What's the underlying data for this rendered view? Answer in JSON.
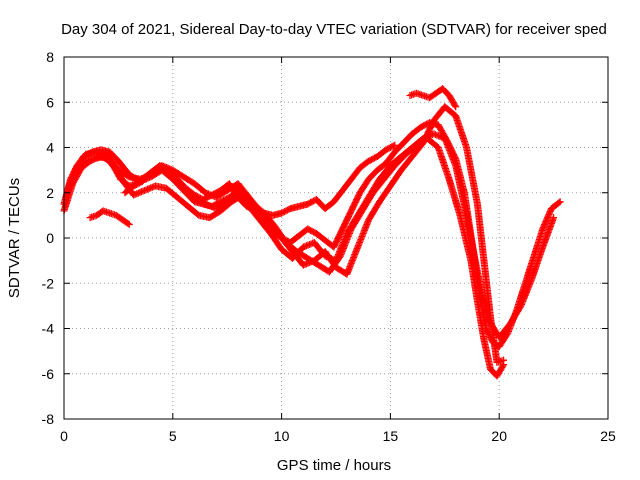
{
  "chart_data": {
    "type": "scatter",
    "title": "Day 304 of 2021, Sidereal Day-to-day VTEC variation (SDTVAR) for receiver sped",
    "xlabel": "GPS time / hours",
    "ylabel": "SDTVAR / TECUs",
    "xlim": [
      0,
      25
    ],
    "ylim": [
      -8,
      8
    ],
    "xticks": [
      0,
      5,
      10,
      15,
      20,
      25
    ],
    "yticks": [
      -8,
      -6,
      -4,
      -2,
      0,
      2,
      4,
      6,
      8
    ],
    "grid": true,
    "marker": "+",
    "color": "#ff0000",
    "series": [
      {
        "x": [
          0.0,
          0.3,
          0.6,
          1.0,
          1.4,
          1.8,
          2.2,
          2.6,
          3.0,
          3.3,
          3.6,
          4.0,
          4.4,
          4.8,
          5.2,
          5.6,
          6.0,
          6.4,
          6.8,
          7.2,
          7.6,
          8.0,
          8.4,
          8.8,
          9.2,
          9.6,
          10.0,
          10.4,
          10.8,
          11.2,
          11.6,
          12.0,
          12.4,
          12.8,
          13.2,
          13.6,
          14.0,
          14.4,
          14.8,
          15.2,
          15.6,
          16.0,
          16.4,
          16.8,
          17.2,
          17.6,
          18.0,
          18.4,
          18.8,
          19.1,
          19.4,
          19.7,
          20.0,
          20.4,
          20.8,
          21.2,
          21.6,
          22.0,
          22.4,
          22.8
        ],
        "y": [
          1.5,
          2.6,
          3.2,
          3.4,
          3.5,
          3.6,
          3.3,
          2.6,
          2.3,
          2.4,
          2.6,
          2.9,
          3.1,
          2.8,
          2.4,
          2.0,
          1.6,
          1.5,
          1.4,
          1.6,
          1.8,
          2.0,
          1.6,
          1.2,
          0.7,
          0.3,
          0.0,
          -0.2,
          0.1,
          0.4,
          0.2,
          -0.1,
          -0.4,
          0.4,
          1.2,
          2.0,
          2.6,
          3.0,
          3.3,
          3.8,
          4.2,
          4.6,
          4.9,
          5.1,
          5.0,
          4.3,
          3.5,
          2.0,
          -0.5,
          -2.6,
          -4.0,
          -4.6,
          -4.8,
          -4.2,
          -3.2,
          -2.0,
          -0.8,
          0.4,
          1.3,
          1.6
        ]
      },
      {
        "x": [
          0.1,
          0.5,
          0.9,
          1.3,
          1.7,
          2.1,
          2.5,
          3.0,
          3.5,
          4.0,
          4.5,
          5.0,
          5.5,
          6.0,
          6.5,
          7.0,
          7.5,
          8.0,
          8.5,
          9.0,
          9.5,
          10.0,
          10.5,
          11.0,
          11.5,
          12.0,
          12.5,
          13.0,
          13.5,
          14.0,
          14.5,
          15.0,
          15.5,
          16.0,
          16.5,
          17.0,
          17.5,
          18.0,
          18.5,
          19.0,
          19.5,
          20.0,
          20.5,
          21.0,
          21.5,
          22.0,
          22.5
        ],
        "y": [
          1.8,
          3.0,
          3.6,
          3.8,
          3.9,
          3.8,
          3.4,
          2.8,
          2.5,
          2.7,
          3.0,
          2.6,
          2.2,
          1.8,
          1.5,
          1.3,
          1.6,
          2.2,
          1.4,
          0.8,
          0.2,
          -0.5,
          -0.9,
          -0.4,
          -0.2,
          -0.8,
          -1.0,
          0.2,
          1.0,
          1.8,
          2.6,
          3.2,
          3.6,
          4.0,
          4.4,
          4.6,
          4.4,
          3.2,
          1.0,
          -1.5,
          -3.6,
          -4.4,
          -3.8,
          -3.0,
          -1.8,
          -0.4,
          0.9
        ]
      },
      {
        "x": [
          0.2,
          0.6,
          1.0,
          1.5,
          2.0,
          2.5,
          3.0,
          3.5,
          4.0,
          4.5,
          5.0,
          5.5,
          6.0,
          6.5,
          7.0,
          7.5,
          8.0,
          8.5,
          9.0,
          9.5,
          10.0,
          10.5,
          11.0,
          11.5,
          12.0,
          12.5,
          13.0,
          13.5,
          14.0,
          14.5,
          15.0,
          15.5,
          16.0,
          16.5,
          17.0,
          17.5,
          18.0,
          18.5,
          19.0,
          19.3,
          19.6,
          19.9,
          20.2
        ],
        "y": [
          2.2,
          3.2,
          3.7,
          3.8,
          3.6,
          3.0,
          2.7,
          2.6,
          2.8,
          3.2,
          3.0,
          2.7,
          2.4,
          2.0,
          1.8,
          2.1,
          2.4,
          1.8,
          1.2,
          0.7,
          0.0,
          -0.6,
          -1.2,
          -1.0,
          -0.6,
          -1.3,
          -1.6,
          -0.4,
          0.8,
          1.6,
          2.3,
          3.0,
          3.6,
          4.2,
          5.2,
          5.8,
          5.4,
          4.0,
          1.5,
          -1.0,
          -3.5,
          -5.5,
          -5.4
        ]
      },
      {
        "x": [
          0.0,
          0.4,
          0.8,
          1.2,
          1.6,
          2.0,
          2.4,
          2.8,
          3.2,
          3.7,
          4.2,
          4.7,
          5.2,
          5.7,
          6.2,
          6.7,
          7.2,
          7.7,
          8.2,
          8.7,
          9.2,
          9.7,
          10.2,
          10.7,
          11.2,
          11.7,
          12.2,
          12.7,
          13.2,
          13.7,
          14.2,
          14.7,
          15.2,
          15.7,
          16.2,
          16.7,
          17.2,
          17.7,
          18.2,
          18.7,
          19.0,
          19.3,
          19.6,
          19.9,
          20.2
        ],
        "y": [
          1.2,
          2.4,
          3.1,
          3.4,
          3.6,
          3.5,
          3.0,
          2.4,
          1.9,
          2.1,
          2.3,
          2.2,
          1.8,
          1.4,
          1.0,
          0.9,
          1.2,
          1.6,
          1.9,
          1.5,
          1.1,
          0.5,
          -0.2,
          -0.6,
          -0.9,
          -1.2,
          -1.5,
          -0.8,
          0.4,
          1.2,
          2.0,
          2.6,
          3.2,
          3.7,
          4.1,
          4.4,
          4.0,
          2.6,
          1.0,
          -1.0,
          -2.8,
          -4.5,
          -5.8,
          -6.1,
          -5.6
        ]
      },
      {
        "x": [
          1.2,
          1.5,
          1.8,
          2.1,
          2.4,
          2.7,
          3.0
        ],
        "y": [
          0.9,
          1.0,
          1.2,
          1.1,
          1.0,
          0.8,
          0.6
        ]
      },
      {
        "x": [
          15.9,
          16.2,
          16.5,
          16.8,
          17.1,
          17.4,
          17.7,
          18.0
        ],
        "y": [
          6.3,
          6.4,
          6.3,
          6.2,
          6.4,
          6.6,
          6.3,
          5.8
        ]
      },
      {
        "x": [
          2.8,
          3.2,
          3.6,
          4.0,
          4.4,
          4.8,
          5.2,
          5.6,
          6.0,
          6.4,
          6.8,
          7.2,
          7.6,
          8.0,
          8.4,
          8.8,
          9.2,
          9.6,
          10.0,
          10.4,
          10.8,
          11.2,
          11.6,
          12.0,
          12.4,
          12.8,
          13.2,
          13.6,
          14.0,
          14.4,
          14.8,
          15.2
        ],
        "y": [
          2.0,
          2.3,
          2.5,
          2.9,
          3.2,
          3.0,
          2.6,
          2.2,
          1.9,
          1.7,
          1.9,
          2.1,
          2.4,
          1.8,
          1.4,
          1.2,
          1.1,
          1.0,
          1.1,
          1.3,
          1.4,
          1.5,
          1.7,
          1.3,
          1.6,
          2.1,
          2.6,
          3.1,
          3.4,
          3.6,
          3.9,
          4.1
        ]
      }
    ]
  }
}
